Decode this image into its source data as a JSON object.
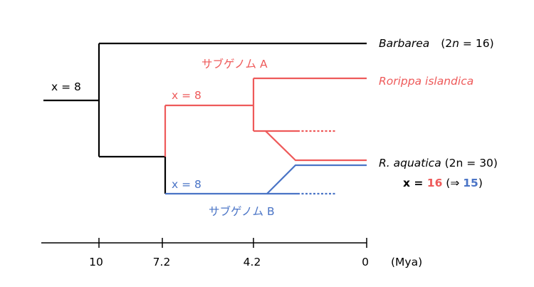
{
  "colors": {
    "black": "#000000",
    "red": "#ee5a5a",
    "blue": "#4a74c6"
  },
  "labels": {
    "root_x": "x = 8",
    "red_x": "x = 8",
    "blue_x": "x = 8",
    "subgenome_a": "サブゲノム A",
    "subgenome_b": "サブゲノム B"
  },
  "taxa": {
    "barbarea_name": "Barbarea",
    "barbarea_ploidy_pre": "(2",
    "barbarea_ploidy_n": "n",
    "barbarea_ploidy_post": " = 16)",
    "rorippa_islandica": "Rorippa islandica",
    "aquatica_name": "R. aquatica",
    "aquatica_ploidy": " (2n = 30)"
  },
  "chromosome_note": {
    "prefix": "x = ",
    "value_a": "16",
    "arrow": " (⇒ ",
    "value_b": "15",
    "suffix": ")"
  },
  "time_axis": {
    "ticks": [
      "10",
      "7.2",
      "4.2",
      "0"
    ],
    "unit": "(Mya)"
  }
}
